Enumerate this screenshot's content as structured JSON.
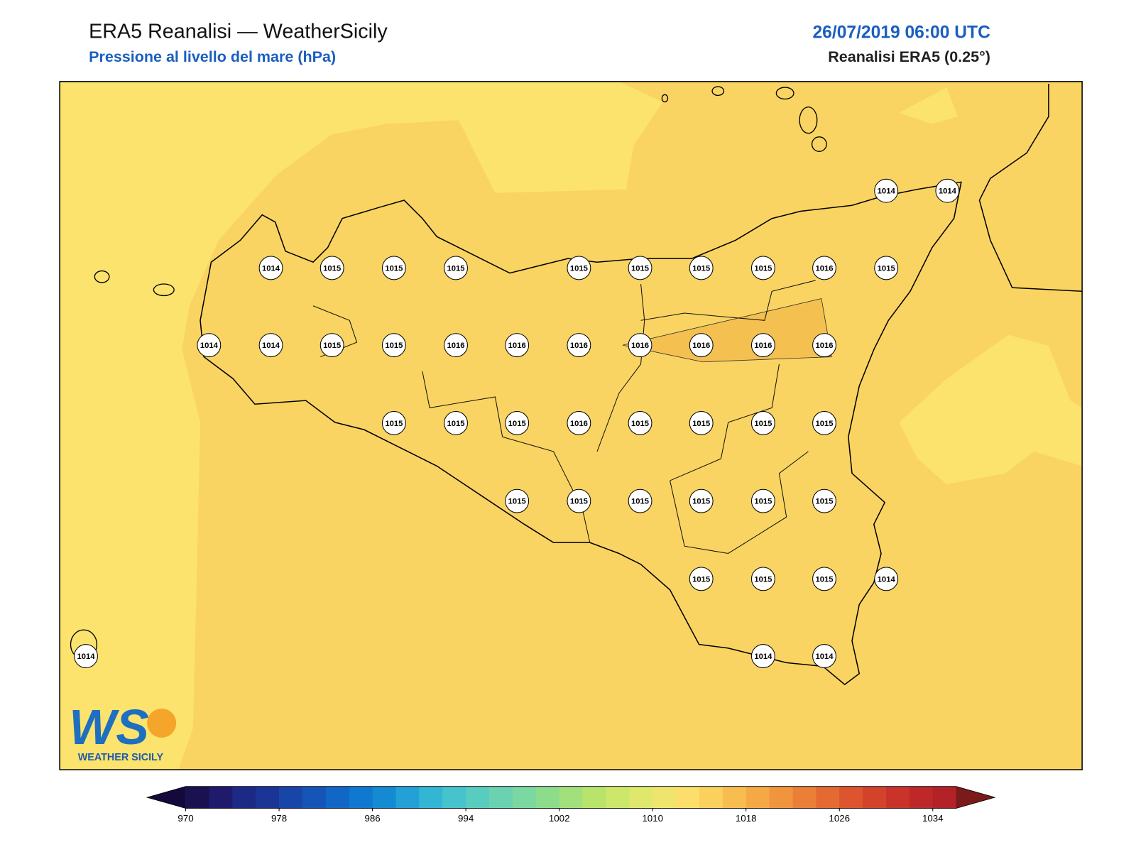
{
  "header": {
    "title": "ERA5 Reanalisi — WeatherSicily",
    "subtitle": "Pressione al livello del mare (hPa)",
    "date": "26/07/2019 06:00 UTC",
    "source": "Reanalisi ERA5 (0.25°)"
  },
  "stations": [
    1014,
    1014,
    1014,
    1015,
    1015,
    1015,
    1015,
    1015,
    1015,
    1015,
    1016,
    1015,
    1014,
    1014,
    1015,
    1015,
    1016,
    1016,
    1016,
    1016,
    1016,
    1016,
    1016,
    1015,
    1015,
    1015,
    1016,
    1015,
    1015,
    1015,
    1015,
    1015,
    1015,
    1015,
    1015,
    1015,
    1015,
    1015,
    1015,
    1015,
    1014,
    1014,
    1014,
    1014
  ],
  "colorbar": {
    "lim": [
      970,
      1036
    ],
    "ticks": [
      970,
      978,
      986,
      994,
      1002,
      1010,
      1018,
      1026,
      1034
    ],
    "colors": [
      "#1a1150",
      "#1f1a6b",
      "#1d2a85",
      "#1a3596",
      "#1845a8",
      "#1555b8",
      "#1266c6",
      "#0f78d0",
      "#148ad3",
      "#23a0d6",
      "#33b6d4",
      "#46c3cc",
      "#58ccbf",
      "#6ad2b0",
      "#7ad8a0",
      "#8ddc8c",
      "#a2e07c",
      "#b8e46c",
      "#cde76a",
      "#dfe76c",
      "#efe56e",
      "#fbdf6a",
      "#fbd05c",
      "#f8bd4f",
      "#f4a945",
      "#f0953d",
      "#eb7f37",
      "#e46a32",
      "#dc552f",
      "#d3432c",
      "#c9332a",
      "#bf2829",
      "#b22226"
    ],
    "under": "#14093a",
    "over": "#7a1a1a"
  },
  "logo": {
    "mark": "WS",
    "text": "WEATHER SICILY"
  }
}
